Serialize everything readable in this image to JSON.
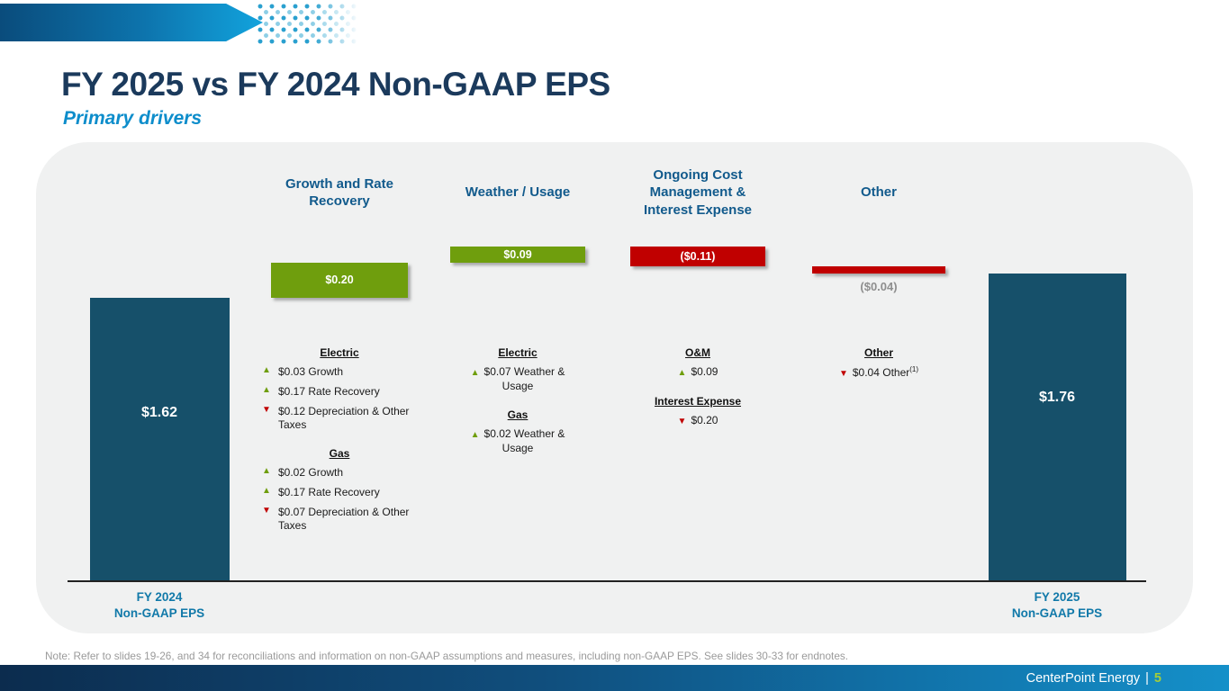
{
  "slide": {
    "title": "FY 2025 vs FY 2024 Non-GAAP EPS",
    "subtitle": "Primary drivers",
    "note": "Note: Refer to slides 19-26, and 34 for reconciliations and information on non-GAAP assumptions and measures, including non-GAAP EPS. See slides 30-33 for endnotes.",
    "footer": {
      "brand": "CenterPoint Energy",
      "divider": "|",
      "page": "5"
    }
  },
  "colors": {
    "title_navy": "#1b3a5c",
    "accent_blue": "#0d8dcb",
    "column_header_blue": "#115a8c",
    "axis_label_blue": "#1179a9",
    "bar_teal": "#16506a",
    "bar_green": "#6f9e0d",
    "bar_red": "#c00000",
    "panel_gray": "#f0f1f1",
    "muted_label_gray": "#8e8e8e"
  },
  "chart_data": {
    "type": "bar",
    "subtype": "waterfall",
    "title": "FY 2025 vs FY 2024 Non-GAAP EPS — Primary drivers",
    "unit": "USD per share (non-GAAP EPS)",
    "start_value": 1.62,
    "end_value": 1.76,
    "ylim": [
      0,
      1.91
    ],
    "grid": false,
    "columns": [
      {
        "id": "fy2024",
        "kind": "total",
        "value": 1.62,
        "display": "$1.62",
        "axis_label_lines": [
          "FY 2024",
          "Non-GAAP EPS"
        ]
      },
      {
        "id": "growth",
        "kind": "delta",
        "value": 0.2,
        "display": "$0.20",
        "header": "Growth and Rate Recovery"
      },
      {
        "id": "weather",
        "kind": "delta",
        "value": 0.09,
        "display": "$0.09",
        "header": "Weather / Usage"
      },
      {
        "id": "cost",
        "kind": "delta",
        "value": -0.11,
        "display": "($0.11)",
        "header": "Ongoing Cost Management & Interest Expense"
      },
      {
        "id": "other",
        "kind": "delta",
        "value": -0.04,
        "display": "($0.04)",
        "header": "Other",
        "label_outside": true
      },
      {
        "id": "fy2025",
        "kind": "total",
        "value": 1.76,
        "display": "$1.76",
        "axis_label_lines": [
          "FY 2025",
          "Non-GAAP EPS"
        ]
      }
    ],
    "details": [
      {
        "column": "growth",
        "sections": [
          {
            "heading": "Electric",
            "items": [
              {
                "dir": "up",
                "text": "$0.03 Growth"
              },
              {
                "dir": "up",
                "text": "$0.17 Rate Recovery"
              },
              {
                "dir": "down",
                "text": "$0.12 Depreciation & Other Taxes"
              }
            ]
          },
          {
            "heading": "Gas",
            "items": [
              {
                "dir": "up",
                "text": "$0.02 Growth"
              },
              {
                "dir": "up",
                "text": "$0.17 Rate Recovery"
              },
              {
                "dir": "down",
                "text": "$0.07 Depreciation & Other Taxes"
              }
            ]
          }
        ]
      },
      {
        "column": "weather",
        "sections": [
          {
            "heading": "Electric",
            "items": [
              {
                "dir": "up",
                "text": "$0.07 Weather & Usage"
              }
            ]
          },
          {
            "heading": "Gas",
            "items": [
              {
                "dir": "up",
                "text": "$0.02 Weather & Usage"
              }
            ]
          }
        ]
      },
      {
        "column": "cost",
        "sections": [
          {
            "heading": "O&M",
            "items": [
              {
                "dir": "up",
                "text": "$0.09"
              }
            ]
          },
          {
            "heading": "Interest Expense",
            "items": [
              {
                "dir": "down",
                "text": "$0.20"
              }
            ]
          }
        ]
      },
      {
        "column": "other",
        "sections": [
          {
            "heading": "Other",
            "items": [
              {
                "dir": "down",
                "text": "$0.04 Other",
                "sup": "(1)"
              }
            ]
          }
        ]
      }
    ]
  }
}
